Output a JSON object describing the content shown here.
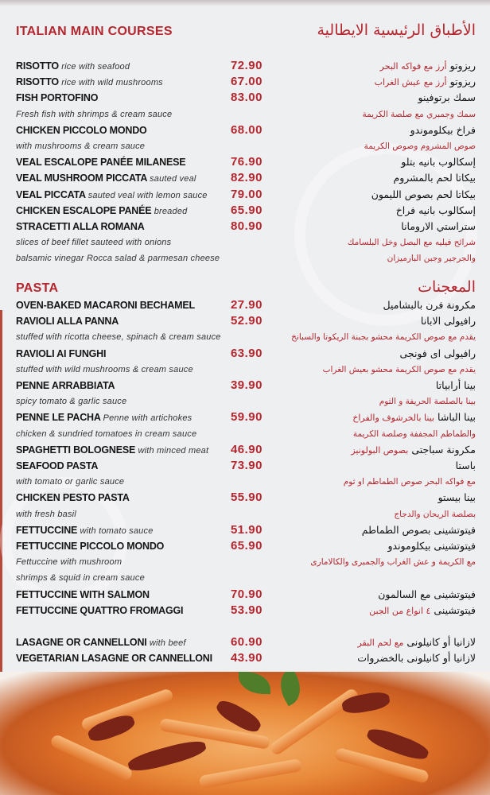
{
  "sections": [
    {
      "title": "ITALIAN MAIN COURSES",
      "title_ar": "الأطباق الرئيسية الايطالية",
      "rows": [
        {
          "en": "RISOTTO",
          "en_desc": "rice with seafood",
          "price": "72.90",
          "ar": "ريزوتو",
          "ar_desc": "أرز مع فواكه البحر"
        },
        {
          "en": "RISOTTO",
          "en_desc": "rice with wild mushrooms",
          "price": "67.00",
          "ar": "ريزوتو",
          "ar_desc": "أرز مع عيش الغراب"
        },
        {
          "en": "FISH PORTOFINO",
          "price": "83.00",
          "ar": "سمك برتوفينو"
        },
        {
          "note": "Fresh fish with shrimps & cream sauce",
          "ar_note": "سمك وجمبري مع صلصة الكريمة"
        },
        {
          "en": "CHICKEN PICCOLO MONDO",
          "price": "68.00",
          "ar": "فراخ بيكلوموندو"
        },
        {
          "note": "with mushrooms & cream sauce",
          "ar_note": "صوص المشروم وصوص الكريمة"
        },
        {
          "en": "VEAL ESCALOPE PANÉE MILANESE",
          "price": "76.90",
          "ar": "إسكالوب بانيه بتلو"
        },
        {
          "en": "VEAL MUSHROOM PICCATA",
          "en_desc": "sauted veal",
          "price": "82.90",
          "ar": "بيكاتا لحم بالمشروم"
        },
        {
          "en": "VEAL PICCATA",
          "en_desc": "sauted veal with lemon sauce",
          "price": "79.00",
          "ar": "بيكاتا لحم بصوص الليمون"
        },
        {
          "en": "CHICKEN ESCALOPE PANÉE",
          "en_desc": "breaded",
          "price": "65.90",
          "ar": "إسكالوب بانيه فراخ"
        },
        {
          "en": "STRACETTI ALLA ROMANA",
          "price": "80.90",
          "ar": "ستراستي الارومانا"
        },
        {
          "note": "slices of beef fillet sauteed with onions",
          "ar_note": "شرائح فيليه مع البصل وخل البلسامك"
        },
        {
          "note": "balsamic vinegar Rocca salad & parmesan cheese",
          "ar_note": "والجرجير وجبن البارميزان"
        }
      ]
    },
    {
      "title": "PASTA",
      "title_ar": "المعجنات",
      "rows": [
        {
          "en": "OVEN-BAKED MACARONI BECHAMEL",
          "price": "27.90",
          "ar": "مكرونة فرن بالبشاميل"
        },
        {
          "en": "RAVIOLI ALLA PANNA",
          "price": "52.90",
          "ar": "رافيولى الابانا"
        },
        {
          "note": "stuffed with ricotta cheese, spinach & cream sauce",
          "ar_note": "يقدم مع صوص الكريمة محشو بجبنة الريكوتا والسبانخ"
        },
        {
          "en": "RAVIOLI AI FUNGHI",
          "price": "63.90",
          "ar": "رافيولى اى فونجى"
        },
        {
          "note": "stuffed with wild mushrooms & cream sauce",
          "ar_note": "يقدم مع صوص الكريمة محشو بعيش الغراب"
        },
        {
          "en": "PENNE ARRABBIATA",
          "price": "39.90",
          "ar": "بينا أرابياتا"
        },
        {
          "note": "spicy tomato & garlic sauce",
          "ar_note": "بينا بالصلصة الحريفة و الثوم"
        },
        {
          "en": "PENNE LE PACHA",
          "en_desc": "Penne with artichokes",
          "price": "59.90",
          "ar": "بينا الباشا",
          "ar_desc": "بينا بالخرشوف والفراخ"
        },
        {
          "note": "chicken & sundried tomatoes in cream sauce",
          "ar_note": "والطماطم المجففة وصلصة الكريمة"
        },
        {
          "en": "SPAGHETTI BOLOGNESE",
          "en_desc": "with minced meat",
          "price": "46.90",
          "ar": "مكرونة سباجتى",
          "ar_desc": "بصوص البولونيز"
        },
        {
          "en": "SEAFOOD PASTA",
          "price": "73.90",
          "ar": "باستا"
        },
        {
          "note": "with tomato or garlic sauce",
          "ar_note": "مع فواكه البحر صوص الطماطم او ثوم"
        },
        {
          "en": "CHICKEN PESTO PASTA",
          "price": "55.90",
          "ar": "بينا بيستو"
        },
        {
          "note": "with fresh basil",
          "ar_note": "بصلصة الريحان والدجاج"
        },
        {
          "en": "FETTUCCINE",
          "en_desc": "with tomato sauce",
          "price": "51.90",
          "ar": "فيتوتشينى بصوص الطماطم"
        },
        {
          "en": "FETTUCCINE PICCOLO MONDO",
          "price": "65.90",
          "ar": "فيتوتشينى بيكلوموندو"
        },
        {
          "note": "Fettuccine with mushroom",
          "ar_note": "مع الكريمة و عش الغراب والجمبرى والكالامارى"
        },
        {
          "note": " shrimps & squid in cream sauce"
        },
        {
          "en": "FETTUCCINE WITH SALMON",
          "price": "70.90",
          "ar": "فيتوتشينى مع السالمون"
        },
        {
          "en": "FETTUCCINE QUATTRO FROMAGGI",
          "price": "53.90",
          "ar": "فيتوتشينى",
          "ar_desc": "٤ انواع من الجبن"
        }
      ]
    },
    {
      "rows": [
        {
          "en": "LASAGNE OR CANNELLONI",
          "en_desc": "with beef",
          "price": "60.90",
          "ar": "لازانيا أو كانيلونى",
          "ar_desc": "مع لحم البقر"
        },
        {
          "en": "VEGETARIAN LASAGNE OR CANNELLONI",
          "price": "43.90",
          "ar": "لازانيا أو كانيلونى بالخضروات"
        }
      ]
    }
  ],
  "colors": {
    "accent": "#b5262e",
    "background": "#eeeff1"
  }
}
